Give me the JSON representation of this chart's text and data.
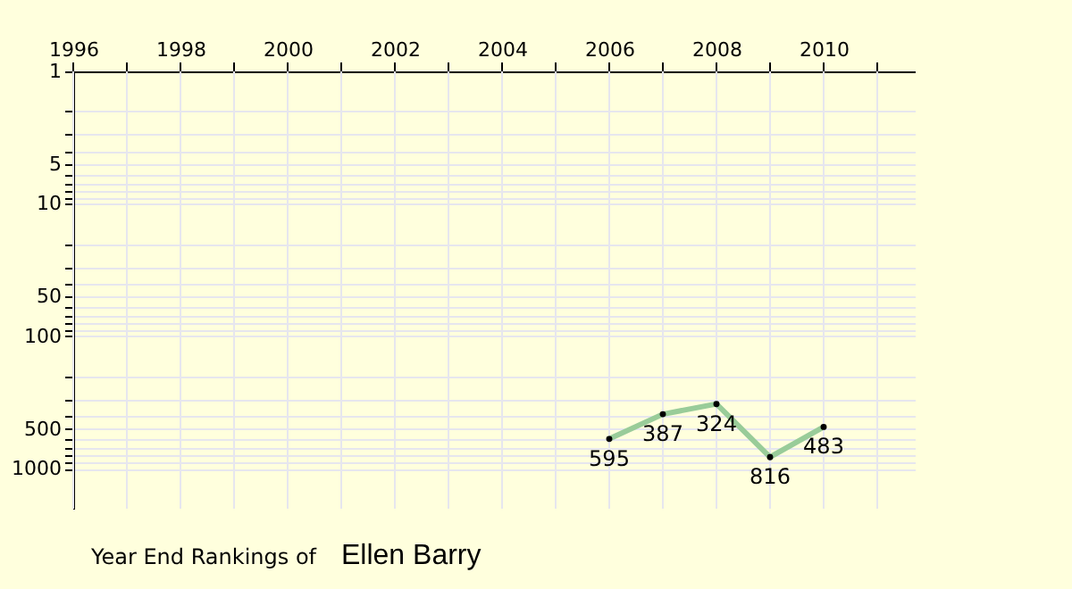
{
  "chart_data": {
    "type": "line",
    "title": "Year End Rankings of",
    "subtitle": "Ellen Barry",
    "x": [
      2006,
      2007,
      2008,
      2009,
      2010
    ],
    "series": [
      {
        "color": "#99cc99",
        "values": [
          595,
          387,
          324,
          816,
          483
        ]
      }
    ],
    "xlim": [
      1996,
      2011.7
    ],
    "xticks": [
      1996,
      {
        "value": 1997,
        "label": null
      },
      1998,
      {
        "value": 1999,
        "label": null
      },
      2000,
      {
        "value": 2001,
        "label": null
      },
      2002,
      {
        "value": 2003,
        "label": null
      },
      2004,
      {
        "value": 2005,
        "label": null
      },
      2006,
      {
        "value": 2007,
        "label": null
      },
      2008,
      {
        "value": 2009,
        "label": null
      },
      2010,
      {
        "value": 2011,
        "label": null
      }
    ],
    "ylim": [
      2000,
      1
    ],
    "yticks": [
      1,
      {
        "value": 2,
        "label": null
      },
      {
        "value": 3,
        "label": null
      },
      {
        "value": 4,
        "label": null
      },
      5,
      {
        "value": 6,
        "label": null
      },
      {
        "value": 7,
        "label": null
      },
      {
        "value": 8,
        "label": null
      },
      {
        "value": 9,
        "label": null
      },
      10,
      {
        "value": 20,
        "label": null
      },
      {
        "value": 30,
        "label": null
      },
      {
        "value": 40,
        "label": null
      },
      50,
      {
        "value": 60,
        "label": null
      },
      {
        "value": 70,
        "label": null
      },
      {
        "value": 80,
        "label": null
      },
      {
        "value": 90,
        "label": null
      },
      100,
      {
        "value": 200,
        "label": null
      },
      {
        "value": 300,
        "label": null
      },
      {
        "value": 400,
        "label": null
      },
      500,
      {
        "value": 600,
        "label": null
      },
      {
        "value": 700,
        "label": null
      },
      {
        "value": 800,
        "label": null
      },
      {
        "value": 900,
        "label": null
      },
      1000
    ],
    "log": true,
    "grid": true,
    "data_labels": true,
    "marker": "circle",
    "line_style": "solid"
  }
}
